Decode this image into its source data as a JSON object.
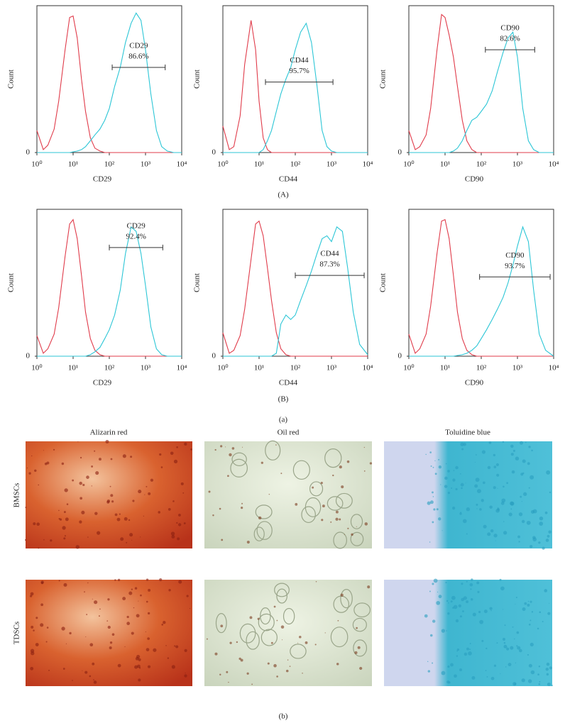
{
  "chart_data": [
    {
      "type": "histogram",
      "panel": "A",
      "xlabel": "CD29",
      "ylabel": "Count",
      "log_x": true,
      "xlim": [
        1,
        10000
      ],
      "ylim": [
        0,
        100
      ],
      "xticks": [
        {
          "value": 1,
          "label": "10⁰"
        },
        {
          "value": 10,
          "label": "10¹"
        },
        {
          "value": 100,
          "label": "10²"
        },
        {
          "value": 1000,
          "label": "10³"
        },
        {
          "value": 10000,
          "label": "10⁴"
        }
      ],
      "yticks": [
        0
      ],
      "x": [
        1,
        1.5,
        2,
        3,
        4,
        6,
        8,
        10,
        13,
        17,
        22,
        30,
        40,
        55,
        75,
        100,
        140,
        200,
        280,
        400,
        550,
        750,
        1000,
        1400,
        2000,
        2800,
        4000,
        6000,
        10000
      ],
      "series": [
        {
          "color": "#e03b4a",
          "values": [
            15,
            2,
            5,
            16,
            35,
            70,
            92,
            93,
            78,
            50,
            28,
            10,
            3,
            1,
            0,
            0,
            0,
            0,
            0,
            0,
            0,
            0,
            0,
            0,
            0,
            0,
            0,
            0,
            0
          ]
        },
        {
          "color": "#2cc6d6",
          "values": [
            0,
            0,
            0,
            0,
            0,
            0,
            0,
            0.5,
            1,
            2,
            4,
            8,
            12,
            16,
            22,
            30,
            45,
            58,
            75,
            88,
            95,
            90,
            70,
            40,
            15,
            4,
            1,
            0,
            0
          ]
        }
      ],
      "gate": {
        "marker": "CD29",
        "percent": 86.6,
        "percent_label": "86.6%",
        "range": [
          120,
          3500
        ],
        "level": 58
      }
    },
    {
      "type": "histogram",
      "panel": "A",
      "xlabel": "CD44",
      "ylabel": "Count",
      "log_x": true,
      "xlim": [
        1,
        10000
      ],
      "ylim": [
        0,
        100
      ],
      "xticks": [
        {
          "value": 1,
          "label": "10⁰"
        },
        {
          "value": 10,
          "label": "10¹"
        },
        {
          "value": 100,
          "label": "10²"
        },
        {
          "value": 1000,
          "label": "10³"
        },
        {
          "value": 10000,
          "label": "10⁴"
        }
      ],
      "yticks": [
        0
      ],
      "x": [
        1,
        1.5,
        2,
        3,
        4,
        6,
        8,
        10,
        13,
        17,
        22,
        30,
        40,
        55,
        75,
        100,
        140,
        200,
        280,
        400,
        550,
        750,
        1000,
        1400,
        2000,
        2800,
        4000,
        6000,
        10000
      ],
      "series": [
        {
          "color": "#e03b4a",
          "values": [
            18,
            2,
            4,
            25,
            60,
            90,
            70,
            35,
            10,
            2,
            0,
            0,
            0,
            0,
            0,
            0,
            0,
            0,
            0,
            0,
            0,
            0,
            0,
            0,
            0,
            0,
            0,
            0,
            0
          ]
        },
        {
          "color": "#2cc6d6",
          "values": [
            0,
            0,
            0,
            0,
            0,
            0,
            0,
            0,
            2,
            8,
            15,
            28,
            40,
            50,
            58,
            70,
            82,
            88,
            75,
            45,
            15,
            4,
            1,
            0,
            0,
            0,
            0,
            0,
            0
          ]
        }
      ],
      "gate": {
        "marker": "CD44",
        "percent": 95.7,
        "percent_label": "95.7%",
        "range": [
          15,
          1100
        ],
        "level": 48
      }
    },
    {
      "type": "histogram",
      "panel": "A",
      "xlabel": "CD90",
      "ylabel": "Count",
      "log_x": true,
      "xlim": [
        1,
        10000
      ],
      "ylim": [
        0,
        100
      ],
      "xticks": [
        {
          "value": 1,
          "label": "10⁰"
        },
        {
          "value": 10,
          "label": "10¹"
        },
        {
          "value": 100,
          "label": "10²"
        },
        {
          "value": 1000,
          "label": "10³"
        },
        {
          "value": 10000,
          "label": "10⁴"
        }
      ],
      "yticks": [
        0
      ],
      "x": [
        1,
        1.5,
        2,
        3,
        4,
        6,
        8,
        10,
        13,
        17,
        22,
        30,
        40,
        55,
        75,
        100,
        140,
        200,
        280,
        400,
        550,
        750,
        1000,
        1400,
        2000,
        2800,
        4000,
        6000,
        10000
      ],
      "series": [
        {
          "color": "#e03b4a",
          "values": [
            15,
            2,
            4,
            12,
            30,
            70,
            94,
            92,
            80,
            65,
            45,
            22,
            8,
            2,
            0,
            0,
            0,
            0,
            0,
            0,
            0,
            0,
            0,
            0,
            0,
            0,
            0,
            0,
            0
          ]
        },
        {
          "color": "#2cc6d6",
          "values": [
            0,
            0,
            0,
            0,
            0,
            0,
            0,
            0,
            0,
            1,
            3,
            8,
            15,
            22,
            24,
            28,
            33,
            42,
            55,
            68,
            78,
            82,
            65,
            30,
            8,
            2,
            0,
            0,
            0
          ]
        }
      ],
      "gate": {
        "marker": "CD90",
        "percent": 82.6,
        "percent_label": "82.6%",
        "range": [
          130,
          3000
        ],
        "level": 70
      }
    },
    {
      "type": "histogram",
      "panel": "B",
      "xlabel": "CD29",
      "ylabel": "Count",
      "log_x": true,
      "xlim": [
        1,
        10000
      ],
      "ylim": [
        0,
        100
      ],
      "xticks": [
        {
          "value": 1,
          "label": "10⁰"
        },
        {
          "value": 10,
          "label": "10¹"
        },
        {
          "value": 100,
          "label": "10²"
        },
        {
          "value": 1000,
          "label": "10³"
        },
        {
          "value": 10000,
          "label": "10⁴"
        }
      ],
      "yticks": [
        0
      ],
      "x": [
        1,
        1.5,
        2,
        3,
        4,
        6,
        8,
        10,
        13,
        17,
        22,
        30,
        40,
        55,
        75,
        100,
        140,
        200,
        280,
        400,
        550,
        750,
        1000,
        1400,
        2000,
        2800,
        4000,
        6000,
        10000
      ],
      "series": [
        {
          "color": "#e03b4a",
          "values": [
            14,
            2,
            5,
            15,
            33,
            68,
            90,
            93,
            80,
            55,
            30,
            12,
            4,
            1,
            0,
            0,
            0,
            0,
            0,
            0,
            0,
            0,
            0,
            0,
            0,
            0,
            0,
            0,
            0
          ]
        },
        {
          "color": "#2cc6d6",
          "values": [
            0,
            0,
            0,
            0,
            0,
            0,
            0,
            0,
            0,
            0,
            0,
            1,
            3,
            6,
            12,
            18,
            28,
            45,
            70,
            88,
            85,
            70,
            48,
            20,
            5,
            1,
            0,
            0,
            0
          ]
        }
      ],
      "gate": {
        "marker": "CD29",
        "percent": 92.4,
        "percent_label": "92.4%",
        "range": [
          100,
          3000
        ],
        "level": 74
      }
    },
    {
      "type": "histogram",
      "panel": "B",
      "xlabel": "CD44",
      "ylabel": "Count",
      "log_x": true,
      "xlim": [
        1,
        10000
      ],
      "ylim": [
        0,
        100
      ],
      "xticks": [
        {
          "value": 1,
          "label": "10⁰"
        },
        {
          "value": 10,
          "label": "10¹"
        },
        {
          "value": 100,
          "label": "10²"
        },
        {
          "value": 1000,
          "label": "10³"
        },
        {
          "value": 10000,
          "label": "10⁴"
        }
      ],
      "yticks": [
        0
      ],
      "x": [
        1,
        1.5,
        2,
        3,
        4,
        6,
        8,
        10,
        13,
        17,
        22,
        30,
        40,
        55,
        75,
        100,
        140,
        200,
        280,
        400,
        550,
        750,
        1000,
        1400,
        2000,
        2800,
        4000,
        6000,
        10000
      ],
      "series": [
        {
          "color": "#e03b4a",
          "values": [
            16,
            2,
            4,
            14,
            32,
            66,
            90,
            92,
            82,
            60,
            38,
            16,
            5,
            1,
            0,
            0,
            0,
            0,
            0,
            0,
            0,
            0,
            0,
            0,
            0,
            0,
            0,
            0,
            0
          ]
        },
        {
          "color": "#2cc6d6",
          "values": [
            0,
            0,
            0,
            0,
            0,
            0,
            0,
            0,
            0,
            0,
            0,
            2,
            22,
            28,
            25,
            28,
            38,
            48,
            58,
            70,
            80,
            82,
            78,
            88,
            85,
            60,
            30,
            8,
            1
          ]
        }
      ],
      "gate": {
        "marker": "CD44",
        "percent": 87.3,
        "percent_label": "87.3%",
        "range": [
          100,
          8000
        ],
        "level": 55
      }
    },
    {
      "type": "histogram",
      "panel": "B",
      "xlabel": "CD90",
      "ylabel": "Count",
      "log_x": true,
      "xlim": [
        1,
        10000
      ],
      "ylim": [
        0,
        100
      ],
      "xticks": [
        {
          "value": 1,
          "label": "10⁰"
        },
        {
          "value": 10,
          "label": "10¹"
        },
        {
          "value": 100,
          "label": "10²"
        },
        {
          "value": 1000,
          "label": "10³"
        },
        {
          "value": 10000,
          "label": "10⁴"
        }
      ],
      "yticks": [
        0
      ],
      "x": [
        1,
        1.5,
        2,
        3,
        4,
        6,
        8,
        10,
        13,
        17,
        22,
        30,
        40,
        55,
        75,
        100,
        140,
        200,
        280,
        400,
        550,
        750,
        1000,
        1400,
        2000,
        2800,
        4000,
        6000,
        10000
      ],
      "series": [
        {
          "color": "#e03b4a",
          "values": [
            15,
            2,
            5,
            15,
            34,
            70,
            92,
            93,
            80,
            55,
            30,
            12,
            4,
            1,
            0,
            0,
            0,
            0,
            0,
            0,
            0,
            0,
            0,
            0,
            0,
            0,
            0,
            0,
            0
          ]
        },
        {
          "color": "#2cc6d6",
          "values": [
            0,
            0,
            0,
            0,
            0,
            0,
            0,
            0,
            0,
            0,
            0.5,
            1,
            2,
            4,
            7,
            12,
            18,
            25,
            32,
            40,
            50,
            62,
            75,
            88,
            78,
            45,
            15,
            4,
            0
          ]
        }
      ],
      "gate": {
        "marker": "CD90",
        "percent": 93.7,
        "percent_label": "93.7%",
        "range": [
          90,
          8000
        ],
        "level": 54
      }
    }
  ],
  "labels": {
    "row_a": "(A)",
    "row_b": "(B)",
    "part_a": "(a)",
    "part_b": "(b)"
  },
  "staining": {
    "columns": [
      "Alizarin red",
      "Oil red",
      "Toluidine blue"
    ],
    "rows": [
      "BMSCs",
      "TDSCs"
    ]
  }
}
